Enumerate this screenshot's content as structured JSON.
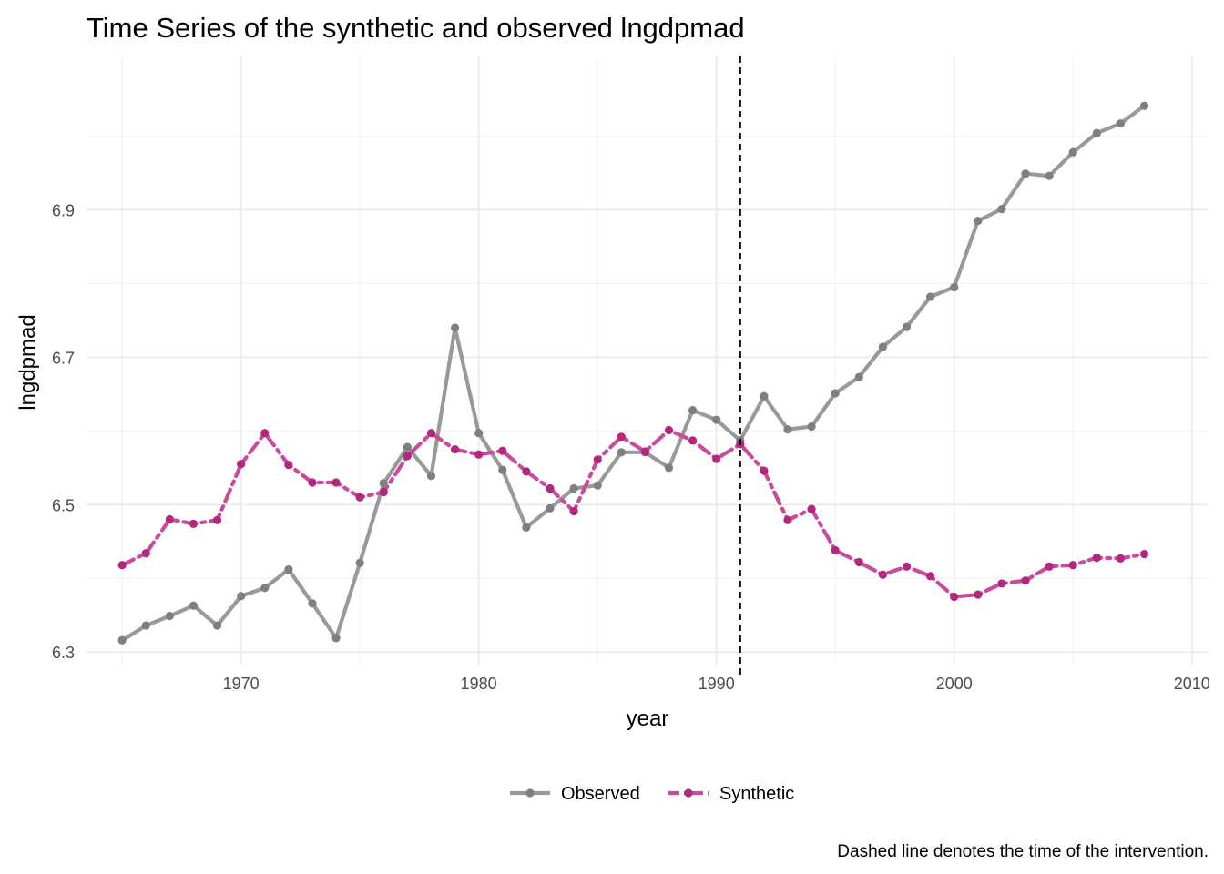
{
  "chart_data": {
    "type": "line",
    "title": "Time Series of the synthetic and observed lngdpmad",
    "xlabel": "year",
    "ylabel": "lngdpmad",
    "caption": "Dashed line denotes the time of the intervention.",
    "xlim": [
      1963.5,
      2010.7
    ],
    "ylim": [
      6.283,
      7.108
    ],
    "x_ticks": [
      1970,
      1980,
      1990,
      2000,
      2010
    ],
    "x_tick_labels": [
      "1970",
      "1980",
      "1990",
      "2000",
      "2010"
    ],
    "y_ticks": [
      6.3,
      6.5,
      6.7,
      6.9
    ],
    "y_tick_labels": [
      "6.3",
      "6.5",
      "6.7",
      "6.9"
    ],
    "grid": true,
    "legend_position": "bottom",
    "intervention_year": 1991,
    "years": [
      1965,
      1966,
      1967,
      1968,
      1969,
      1970,
      1971,
      1972,
      1973,
      1974,
      1975,
      1976,
      1977,
      1978,
      1979,
      1980,
      1981,
      1982,
      1983,
      1984,
      1985,
      1986,
      1987,
      1988,
      1989,
      1990,
      1991,
      1992,
      1993,
      1994,
      1995,
      1996,
      1997,
      1998,
      1999,
      2000,
      2001,
      2002,
      2003,
      2004,
      2005,
      2006,
      2007,
      2008
    ],
    "series": [
      {
        "name": "Observed",
        "color": "#999999",
        "point_color": "#7f7f7f",
        "values": [
          6.316,
          6.336,
          6.349,
          6.363,
          6.336,
          6.376,
          6.387,
          6.412,
          6.366,
          6.319,
          6.421,
          6.529,
          6.578,
          6.539,
          6.74,
          6.597,
          6.547,
          6.469,
          6.495,
          6.522,
          6.526,
          6.571,
          6.571,
          6.55,
          6.628,
          6.615,
          6.587,
          6.647,
          6.602,
          6.606,
          6.651,
          6.673,
          6.714,
          6.741,
          6.782,
          6.795,
          6.885,
          6.901,
          6.949,
          6.946,
          6.978,
          7.004,
          7.017,
          7.041
        ]
      },
      {
        "name": "Synthetic",
        "color": "#c94b9e",
        "point_color": "#b3277d",
        "values": [
          6.418,
          6.434,
          6.48,
          6.474,
          6.479,
          6.555,
          6.597,
          6.554,
          6.53,
          6.53,
          6.51,
          6.517,
          6.566,
          6.597,
          6.575,
          6.568,
          6.573,
          6.545,
          6.522,
          6.491,
          6.561,
          6.592,
          6.572,
          6.601,
          6.587,
          6.562,
          6.582,
          6.546,
          6.479,
          6.494,
          6.438,
          6.422,
          6.405,
          6.416,
          6.403,
          6.375,
          6.378,
          6.393,
          6.397,
          6.416,
          6.418,
          6.428,
          6.427,
          6.433
        ]
      }
    ]
  }
}
